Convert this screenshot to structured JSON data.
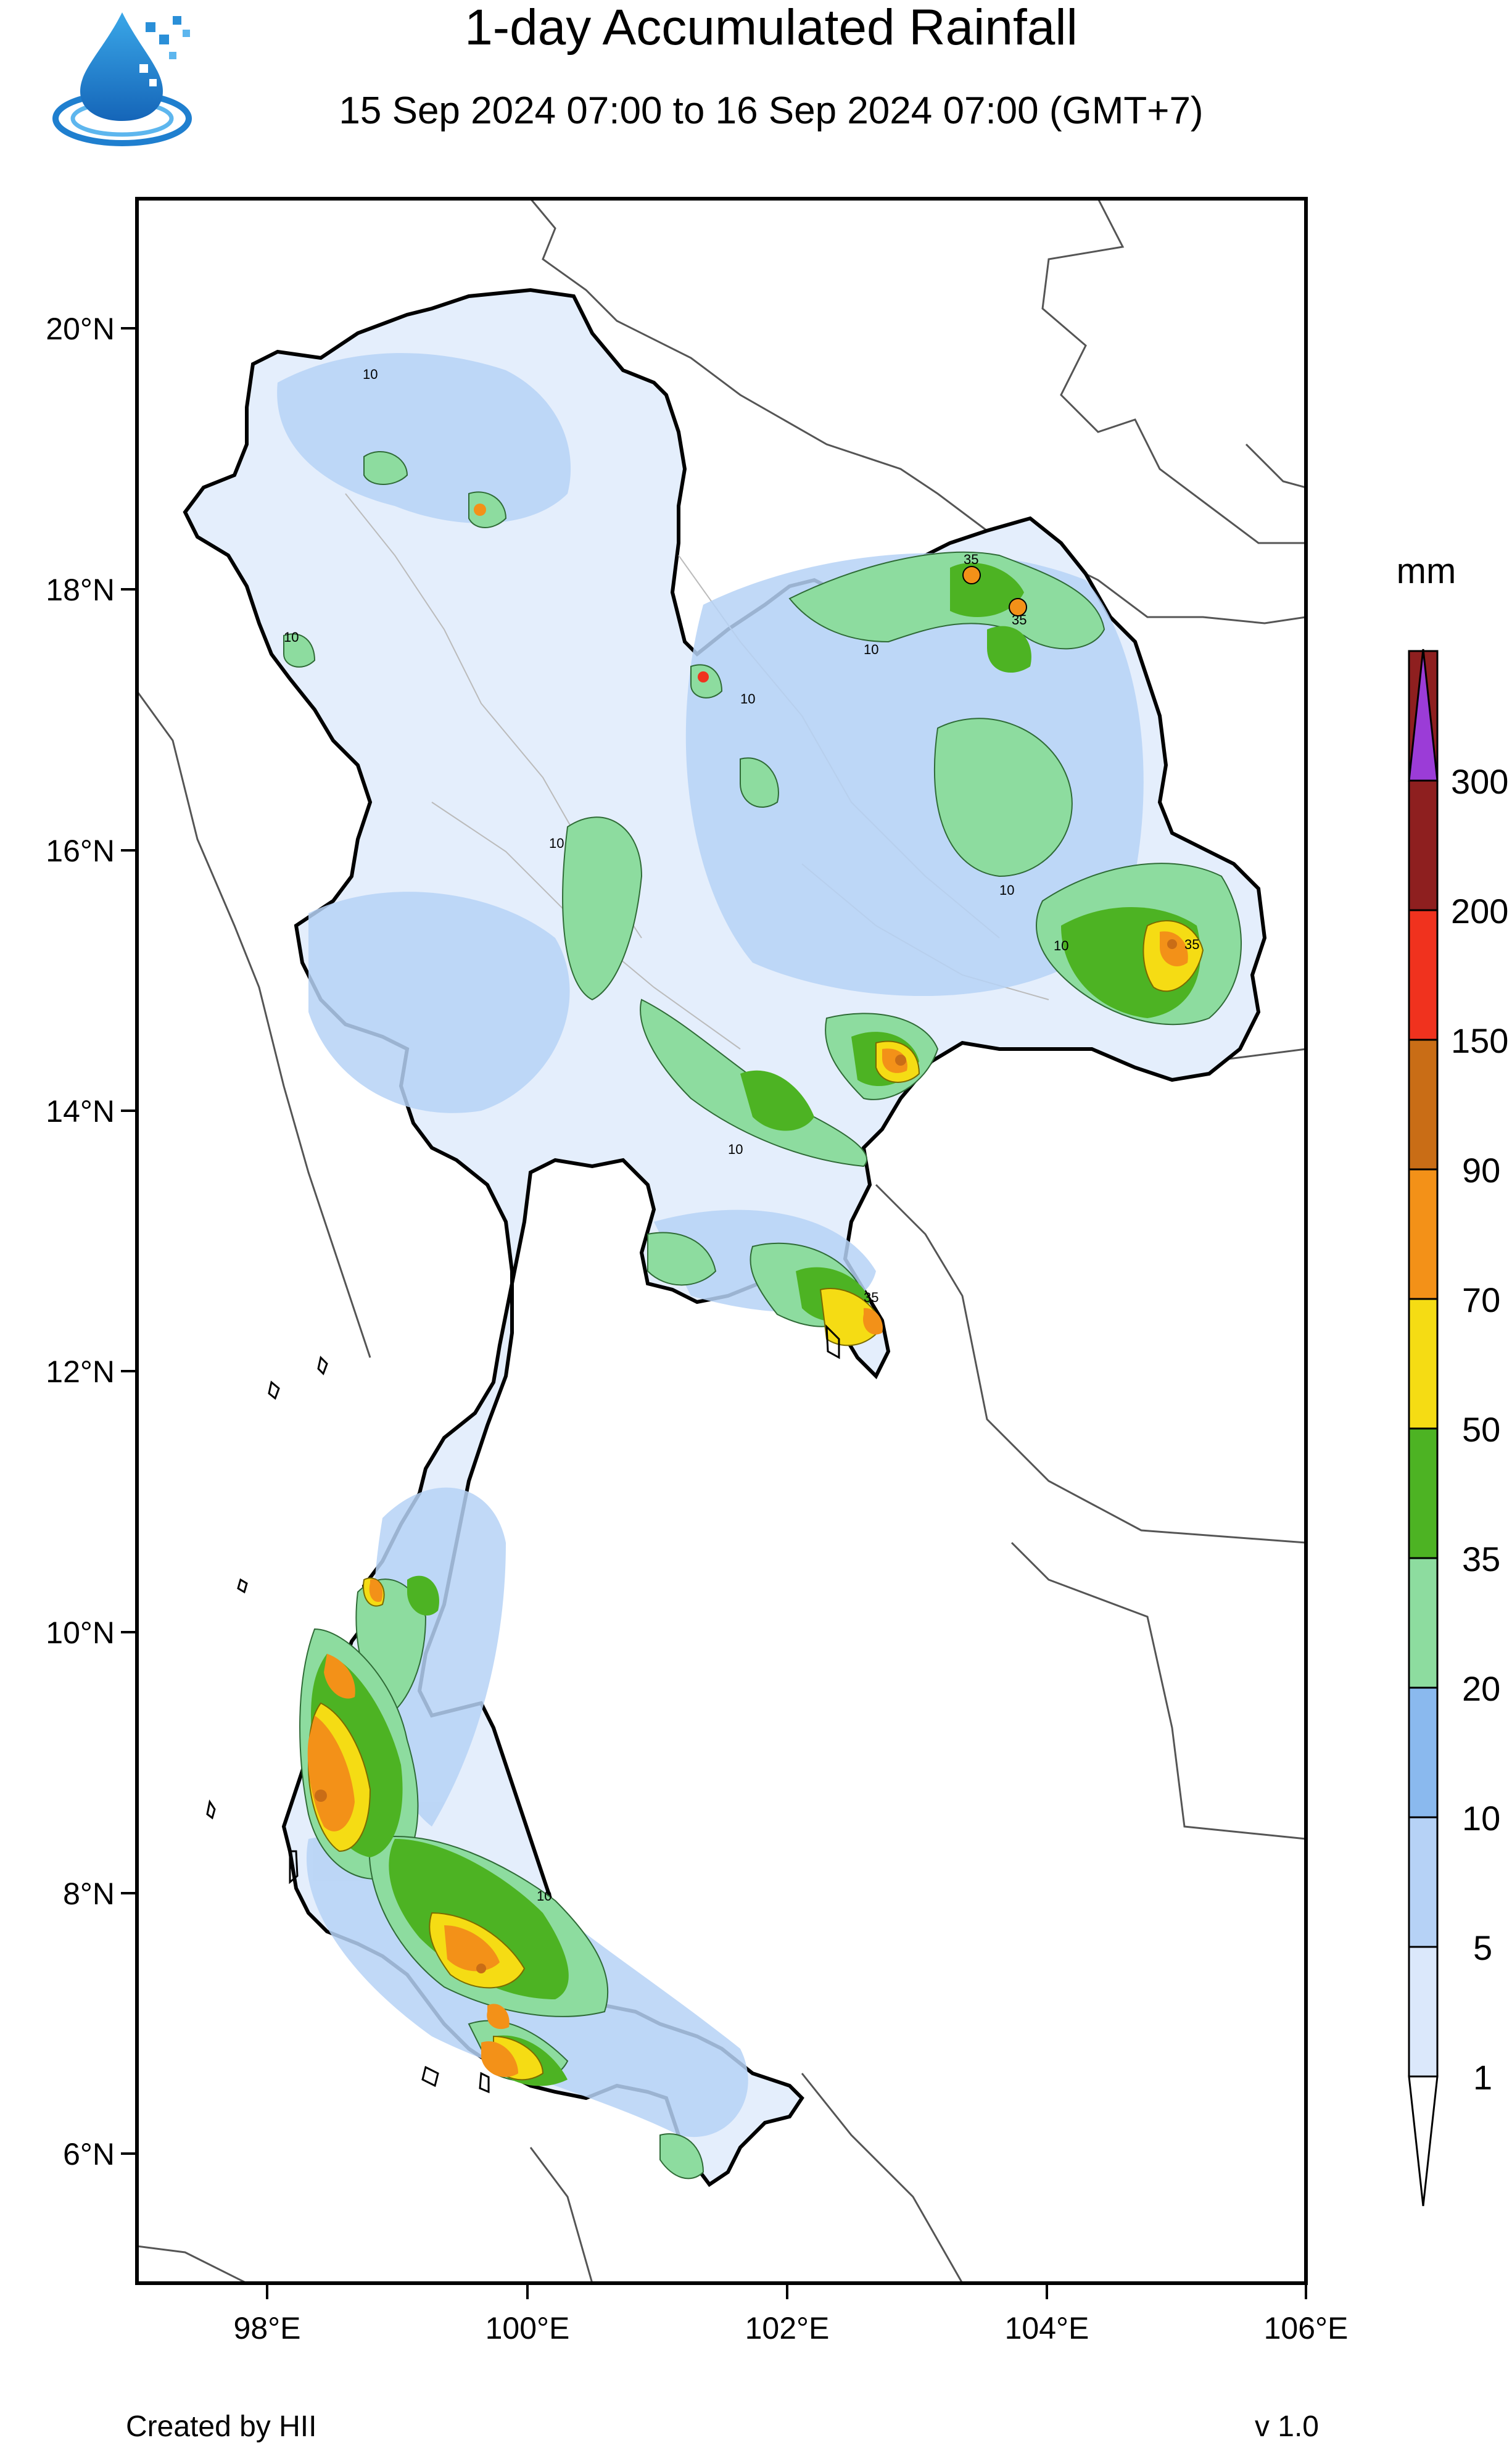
{
  "header": {
    "title": "1-day Accumulated Rainfall",
    "subtitle": "15 Sep 2024 07:00 to 16 Sep 2024 07:00 (GMT+7)"
  },
  "axes": {
    "lat_labels": [
      "20°N",
      "18°N",
      "16°N",
      "14°N",
      "12°N",
      "10°N",
      "8°N",
      "6°N"
    ],
    "lon_labels": [
      "98°E",
      "100°E",
      "102°E",
      "104°E",
      "106°E"
    ]
  },
  "colorbar": {
    "unit": "mm",
    "levels": [
      "1",
      "5",
      "10",
      "20",
      "35",
      "50",
      "70",
      "90",
      "150",
      "200",
      "300"
    ],
    "colors": [
      "#dbe8fb",
      "#b6d2f6",
      "#8ab9ee",
      "#8ddc9f",
      "#4db323",
      "#f5dc14",
      "#f39118",
      "#c96d16",
      "#f0321e",
      "#d2323c",
      "#8e1f1f",
      "#9b3cd7"
    ]
  },
  "contour_labels": [
    "10",
    "35"
  ],
  "footer": {
    "credit": "Created by HII",
    "version": "v 1.0"
  }
}
